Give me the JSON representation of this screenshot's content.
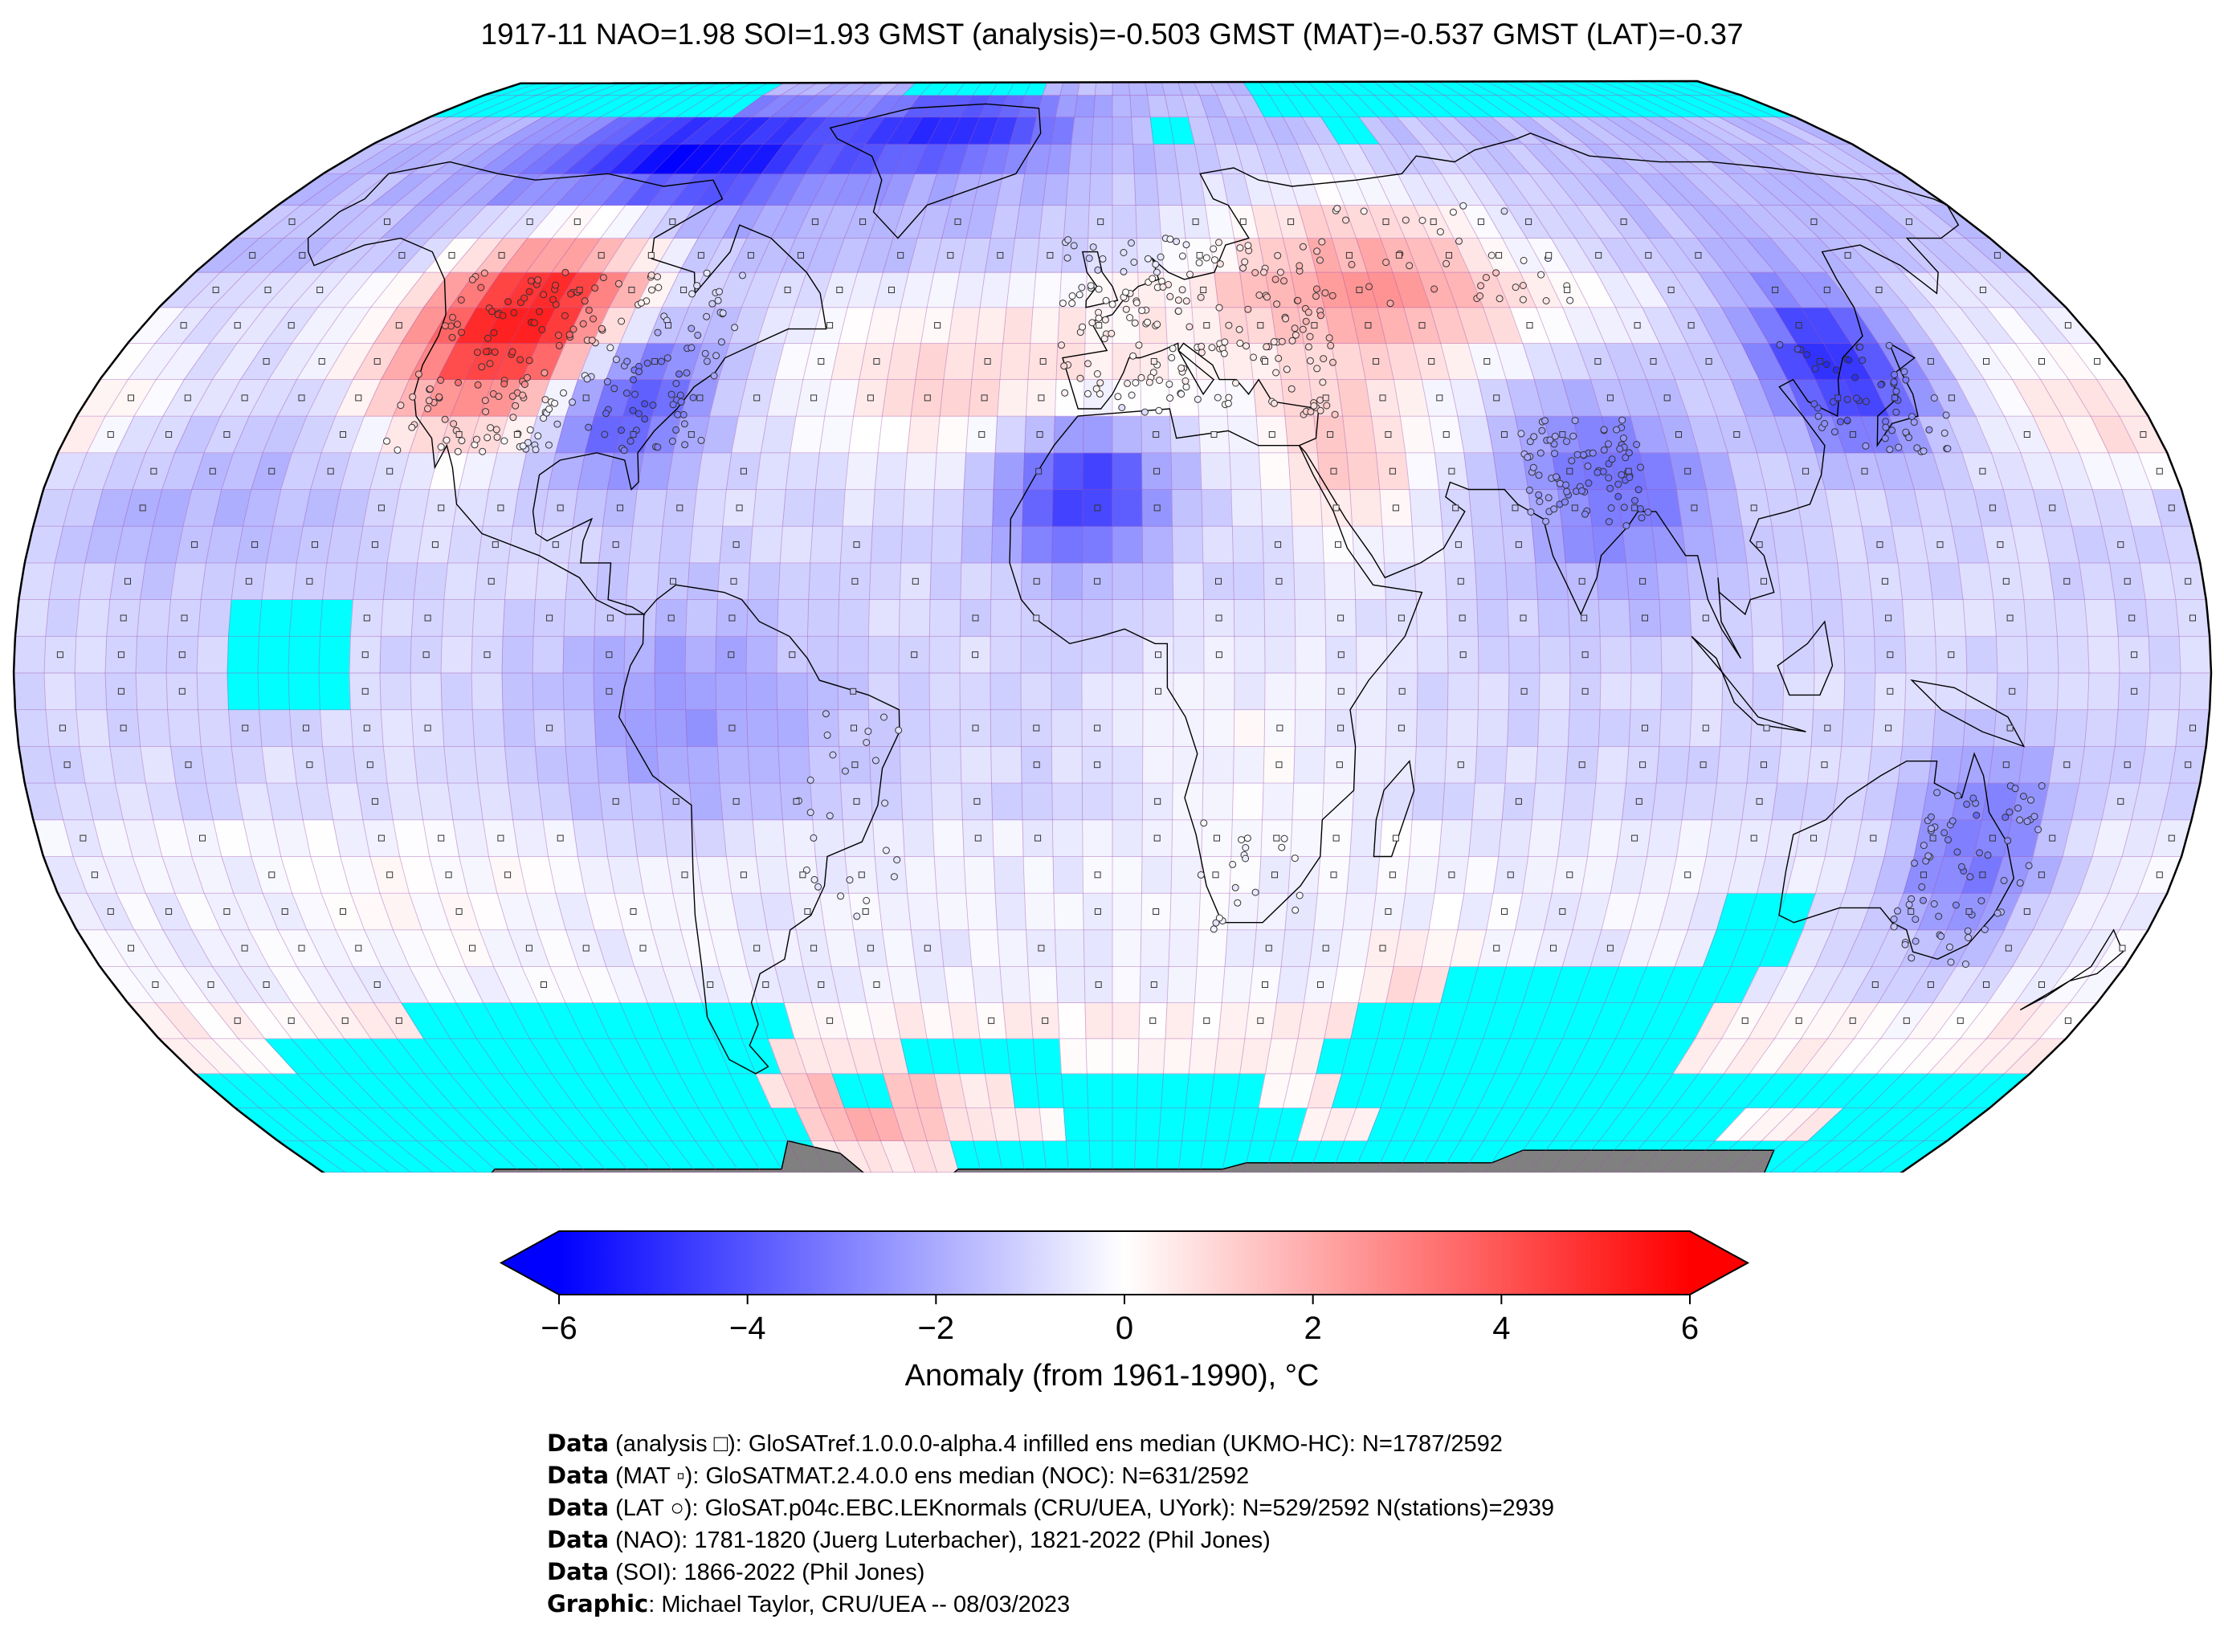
{
  "title": "1917-11 NAO=1.98 SOI=1.93 GMST (analysis)=-0.503 GMST (MAT)=-0.537 GMST (LAT)=-0.37",
  "map": {
    "projection": "robinson",
    "missing_color": "#00ffff",
    "land_ice_color": "#808080",
    "grid": "5-degree lat/lon boxes"
  },
  "chart_data": {
    "type": "heatmap",
    "variable": "temperature anomaly",
    "colormap": "bwr",
    "vmin": -6,
    "vmax": 6,
    "extend": "both",
    "anomaly_regions": [
      {
        "lat_range": [
          35,
          60
        ],
        "lon_range": [
          -125,
          -95
        ],
        "anomaly": 5.5
      },
      {
        "lat_range": [
          25,
          45
        ],
        "lon_range": [
          -95,
          -70
        ],
        "anomaly": -3.5
      },
      {
        "lat_range": [
          65,
          80
        ],
        "lon_range": [
          -130,
          -60
        ],
        "anomaly": -4.5
      },
      {
        "lat_range": [
          70,
          85
        ],
        "lon_range": [
          -60,
          -20
        ],
        "anomaly": -4.0
      },
      {
        "lat_range": [
          45,
          65
        ],
        "lon_range": [
          30,
          70
        ],
        "anomaly": 3.0
      },
      {
        "lat_range": [
          15,
          35
        ],
        "lon_range": [
          -15,
          10
        ],
        "anomaly": -4.0
      },
      {
        "lat_range": [
          20,
          45
        ],
        "lon_range": [
          70,
          95
        ],
        "anomaly": -2.5
      },
      {
        "lat_range": [
          30,
          55
        ],
        "lon_range": [
          110,
          145
        ],
        "anomaly": -4.0
      },
      {
        "lat_range": [
          -40,
          -15
        ],
        "lon_range": [
          135,
          155
        ],
        "anomaly": -3.0
      },
      {
        "lat_range": [
          -65,
          -55
        ],
        "lon_range": [
          -60,
          -40
        ],
        "anomaly": 1.5
      }
    ]
  },
  "colorbar": {
    "ticks": [
      "−6",
      "−4",
      "−2",
      "0",
      "2",
      "4",
      "6"
    ],
    "tick_values": [
      -6,
      -4,
      -2,
      0,
      2,
      4,
      6
    ],
    "label": "Anomaly (from 1961-1990), °C"
  },
  "credits": [
    {
      "bold": "Data",
      "text": " (analysis □): GloSATref.1.0.0.0-alpha.4 infilled ens median (UKMO-HC): N=1787/2592"
    },
    {
      "bold": "Data",
      "text": " (MAT ▫): GloSATMAT.2.4.0.0 ens median (NOC): N=631/2592"
    },
    {
      "bold": "Data",
      "text": " (LAT ○): GloSAT.p04c.EBC.LEKnormals (CRU/UEA, UYork): N=529/2592 N(stations)=2939"
    },
    {
      "bold": "Data",
      "text": " (NAO): 1781-1820 (Juerg Luterbacher), 1821-2022 (Phil Jones)"
    },
    {
      "bold": "Data",
      "text": " (SOI): 1866-2022 (Phil Jones)"
    },
    {
      "bold": "Graphic",
      "text": ": Michael Taylor, CRU/UEA -- 08/03/2023"
    }
  ]
}
